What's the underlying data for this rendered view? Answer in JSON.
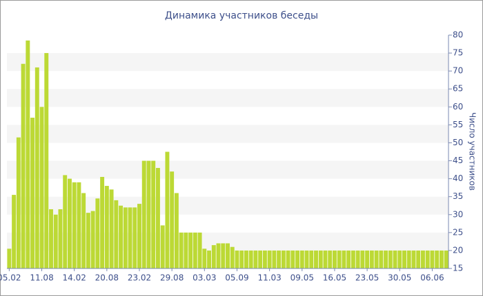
{
  "chart_data": {
    "type": "bar",
    "title": "Динамика участников беседы",
    "y_label": "Число участников",
    "categories": [
      "05.02",
      null,
      null,
      null,
      null,
      null,
      null,
      "11.08",
      null,
      null,
      null,
      null,
      null,
      null,
      "14.02",
      null,
      null,
      null,
      null,
      null,
      null,
      "20.08",
      null,
      null,
      null,
      null,
      null,
      null,
      "23.02",
      null,
      null,
      null,
      null,
      null,
      null,
      "29.08",
      null,
      null,
      null,
      null,
      null,
      null,
      "03.03",
      null,
      null,
      null,
      null,
      null,
      null,
      "05.09",
      null,
      null,
      null,
      null,
      null,
      null,
      "11.03",
      null,
      null,
      null,
      null,
      null,
      null,
      "09.05",
      null,
      null,
      null,
      null,
      null,
      null,
      "16.05",
      null,
      null,
      null,
      null,
      null,
      null,
      "23.05",
      null,
      null,
      null,
      null,
      null,
      null,
      "30.05",
      null,
      null,
      null,
      null,
      null,
      null,
      "06.06",
      null,
      null,
      null
    ],
    "values": [
      20.5,
      35.5,
      51.5,
      72,
      78.5,
      57,
      71,
      60,
      75,
      31.5,
      30,
      31.5,
      41,
      40,
      39,
      39,
      36,
      30.5,
      31,
      34.5,
      40.5,
      38,
      37,
      34,
      32.5,
      32,
      32,
      32,
      33,
      45,
      45,
      45,
      43,
      27,
      47.5,
      42,
      36,
      25,
      25,
      25,
      25,
      25,
      20.5,
      20,
      21.5,
      22,
      22,
      22,
      21,
      20,
      20,
      20,
      20,
      20,
      20,
      20,
      20,
      20,
      20,
      20,
      20,
      20,
      20,
      20,
      20,
      20,
      20,
      20,
      20,
      20,
      20,
      20,
      20,
      20,
      20,
      20,
      20,
      20,
      20,
      20,
      20,
      20,
      20,
      20,
      20,
      20,
      20,
      20,
      20,
      20,
      20,
      20,
      20,
      20,
      20
    ],
    "color": "#bcd935",
    "ylim": [
      15,
      80
    ],
    "yticks": [
      15,
      20,
      25,
      30,
      35,
      40,
      45,
      50,
      55,
      60,
      65,
      70,
      75,
      80
    ],
    "grid": "bands",
    "y_axis_side": "right"
  }
}
